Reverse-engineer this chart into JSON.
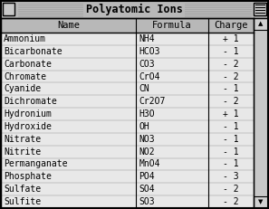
{
  "title": "Polyatomic Ions",
  "headers": [
    "Name",
    "Formula",
    "Charge"
  ],
  "rows": [
    [
      "Ammonium",
      "NH4",
      "+1"
    ],
    [
      "Bicarbonate",
      "HCO3",
      "-1"
    ],
    [
      "Carbonate",
      "CO3",
      "-2"
    ],
    [
      "Chromate",
      "CrO4",
      "-2"
    ],
    [
      "Cyanide",
      "CN",
      "-1"
    ],
    [
      "Dichromate",
      "Cr2O7",
      "-2"
    ],
    [
      "Hydronium",
      "H3O",
      "+1"
    ],
    [
      "Hydroxide",
      "OH",
      "-1"
    ],
    [
      "Nitrate",
      "NO3",
      "-1"
    ],
    [
      "Nitrite",
      "NO2",
      "-1"
    ],
    [
      "Permanganate",
      "MnO4",
      "-1"
    ],
    [
      "Phosphate",
      "PO4",
      "-3"
    ],
    [
      "Sulfate",
      "SO4",
      "-2"
    ],
    [
      "Sulfite",
      "SO3",
      "-2"
    ]
  ],
  "title_fontsize": 8.5,
  "header_fontsize": 7.5,
  "row_fontsize": 7.0,
  "window_bg": "#c8c8c8",
  "title_bar_bg": "#b8b8b8",
  "header_bg": "#b8b8b8",
  "table_bg": "#e8e8e8",
  "scrollbar_bg": "#c8c8c8",
  "border_color": "#000000",
  "line_color": "#000000"
}
